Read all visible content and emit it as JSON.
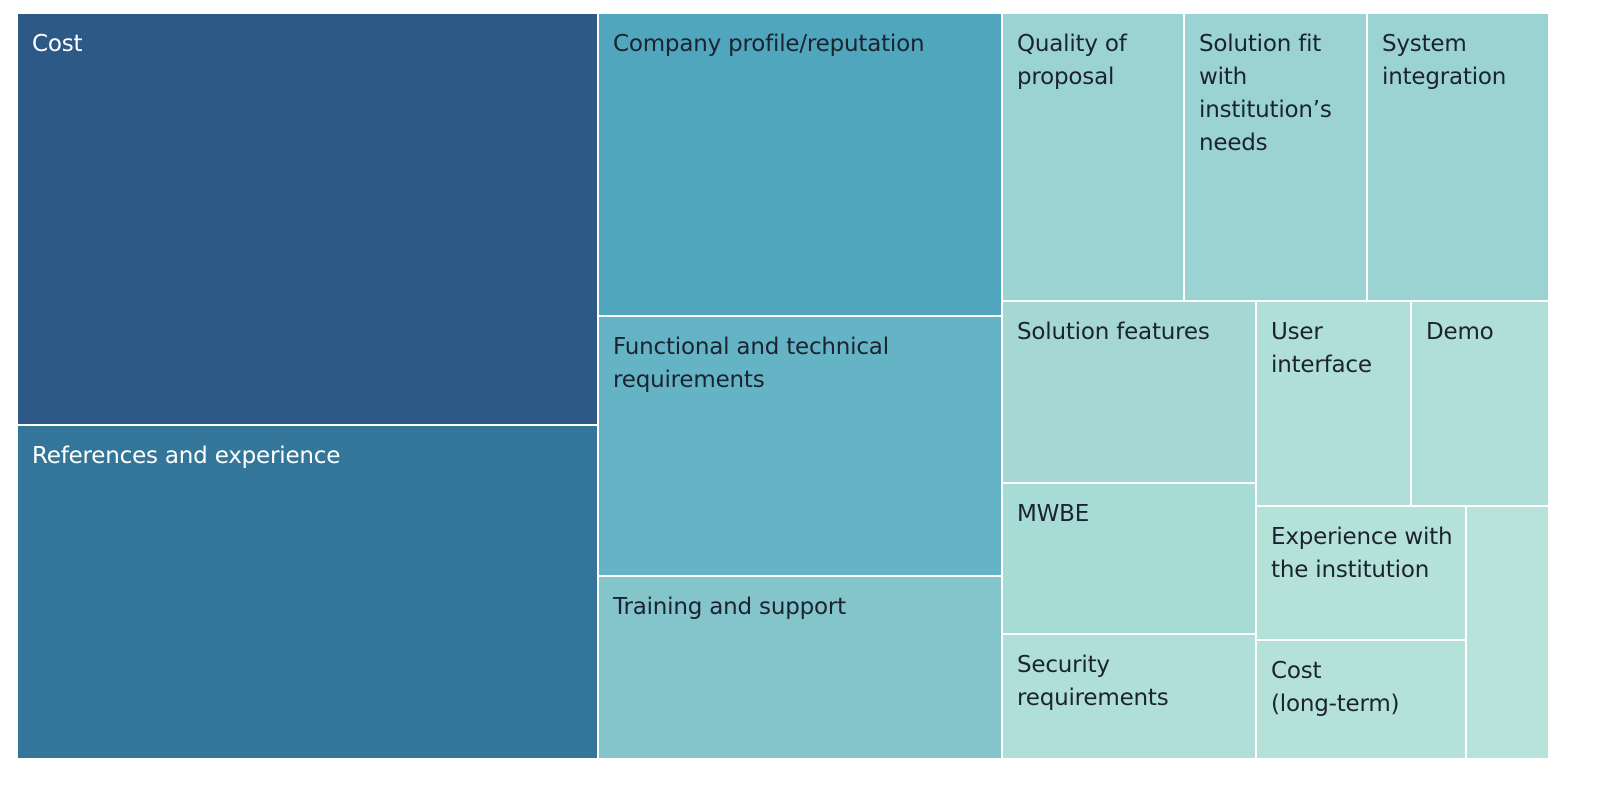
{
  "chart_data": {
    "type": "treemap",
    "title": "",
    "items": [
      {
        "label": "Cost",
        "color": "#2c5985",
        "text_color": "#ffffff"
      },
      {
        "label": "References and experience",
        "color": "#347699",
        "text_color": "#ffffff"
      },
      {
        "label": "Company profile/reputation",
        "color": "#4fa6bd",
        "text_color": "#1b2330"
      },
      {
        "label": "Functional and technical requirements",
        "color": "#64b4c6",
        "text_color": "#1b2330"
      },
      {
        "label": "Training and support",
        "color": "#83c5cb",
        "text_color": "#1b2330"
      },
      {
        "label": "Quality of proposal",
        "color": "#9bd3d2",
        "text_color": "#1b2330"
      },
      {
        "label": "Solution fit with institution’s needs",
        "color": "#9bd3d2",
        "text_color": "#1b2330"
      },
      {
        "label": "System integration",
        "color": "#9bd3d2",
        "text_color": "#1b2330"
      },
      {
        "label": "Solution features",
        "color": "#a5d8d5",
        "text_color": "#1b2330"
      },
      {
        "label": "User interface",
        "color": "#b0ded8",
        "text_color": "#1b2330"
      },
      {
        "label": "Demo",
        "color": "#b0ded8",
        "text_color": "#1b2330"
      },
      {
        "label": "MWBE",
        "color": "#a7dbd6",
        "text_color": "#1b2330"
      },
      {
        "label": "Experience with the institution",
        "color": "#b4e2d9",
        "text_color": "#1b2330"
      },
      {
        "label": "Security requirements",
        "color": "#b0dfd9",
        "text_color": "#1b2330"
      },
      {
        "label": "Cost (long-term)",
        "color": "#b4e2d9",
        "text_color": "#1b2330"
      },
      {
        "label": "",
        "color": "#b7e3da",
        "text_color": "#1b2330"
      }
    ]
  }
}
